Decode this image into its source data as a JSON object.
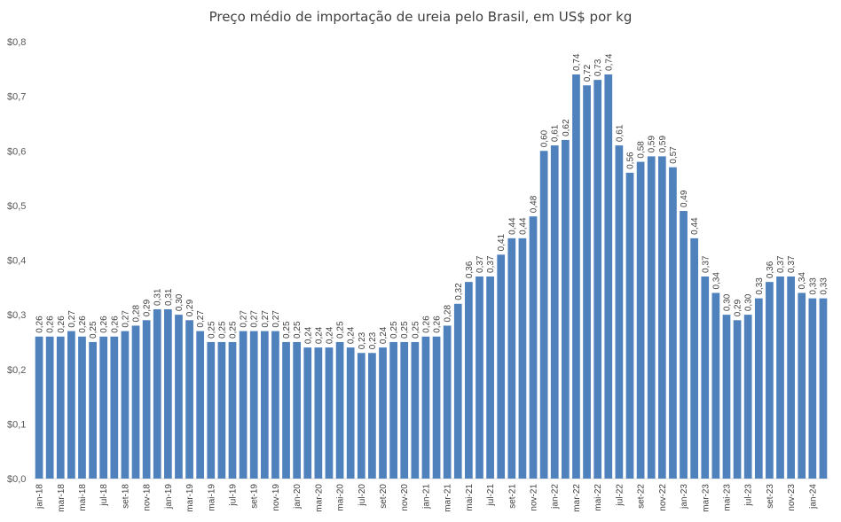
{
  "chart_data": {
    "type": "bar",
    "title": "Preço médio de importação de ureia pelo Brasil, em US$ por kg",
    "xlabel": "",
    "ylabel": "",
    "ylim": [
      0,
      0.8
    ],
    "yticks": [
      "$0,0",
      "$0,1",
      "$0,2",
      "$0,3",
      "$0,4",
      "$0,5",
      "$0,6",
      "$0,7",
      "$0,8"
    ],
    "grid": false,
    "legend": "none",
    "bar_color": "#4F81BD",
    "categories": [
      "jan-18",
      "fev-18",
      "mar-18",
      "abr-18",
      "mai-18",
      "jun-18",
      "jul-18",
      "ago-18",
      "set-18",
      "out-18",
      "nov-18",
      "dez-18",
      "jan-19",
      "fev-19",
      "mar-19",
      "abr-19",
      "mai-19",
      "jun-19",
      "jul-19",
      "ago-19",
      "set-19",
      "out-19",
      "nov-19",
      "dez-19",
      "jan-20",
      "fev-20",
      "mar-20",
      "abr-20",
      "mai-20",
      "jun-20",
      "jul-20",
      "ago-20",
      "set-20",
      "out-20",
      "nov-20",
      "dez-20",
      "jan-21",
      "fev-21",
      "mar-21",
      "abr-21",
      "mai-21",
      "jun-21",
      "jul-21",
      "ago-21",
      "set-21",
      "out-21",
      "nov-21",
      "dez-21",
      "jan-22",
      "fev-22",
      "mar-22",
      "abr-22",
      "mai-22",
      "jun-22",
      "jul-22",
      "ago-22",
      "set-22",
      "out-22",
      "nov-22",
      "dez-22",
      "jan-23",
      "fev-23",
      "mar-23",
      "abr-23",
      "mai-23",
      "jun-23",
      "jul-23",
      "ago-23",
      "set-23",
      "out-23",
      "nov-23",
      "dez-23",
      "jan-24",
      "fev-24"
    ],
    "visible_xticks": [
      "jan-18",
      "mar-18",
      "mai-18",
      "jul-18",
      "set-18",
      "nov-18",
      "jan-19",
      "mar-19",
      "mai-19",
      "jul-19",
      "set-19",
      "nov-19",
      "jan-20",
      "mar-20",
      "mai-20",
      "jul-20",
      "set-20",
      "nov-20",
      "jan-21",
      "mar-21",
      "mai-21",
      "jul-21",
      "set-21",
      "nov-21",
      "jan-22",
      "mar-22",
      "mai-22",
      "jul-22",
      "set-22",
      "nov-22",
      "jan-23",
      "mar-23",
      "mai-23",
      "jul-23",
      "set-23",
      "nov-23",
      "jan-24"
    ],
    "values": [
      0.26,
      0.26,
      0.26,
      0.27,
      0.26,
      0.25,
      0.26,
      0.26,
      0.27,
      0.28,
      0.29,
      0.31,
      0.31,
      0.3,
      0.29,
      0.27,
      0.25,
      0.25,
      0.25,
      0.27,
      0.27,
      0.27,
      0.27,
      0.25,
      0.25,
      0.24,
      0.24,
      0.24,
      0.25,
      0.24,
      0.23,
      0.23,
      0.24,
      0.25,
      0.25,
      0.25,
      0.26,
      0.26,
      0.28,
      0.32,
      0.36,
      0.37,
      0.37,
      0.41,
      0.44,
      0.44,
      0.48,
      0.6,
      0.61,
      0.62,
      0.74,
      0.72,
      0.73,
      0.74,
      0.61,
      0.56,
      0.58,
      0.59,
      0.59,
      0.57,
      0.49,
      0.44,
      0.37,
      0.34,
      0.3,
      0.29,
      0.3,
      0.33,
      0.36,
      0.37,
      0.37,
      0.34,
      0.33,
      0.33
    ],
    "labels": [
      "0,26",
      "0,26",
      "0,26",
      "0,27",
      "0,26",
      "0,25",
      "0,26",
      "0,26",
      "0,27",
      "0,28",
      "0,29",
      "0,31",
      "0,31",
      "0,30",
      "0,29",
      "0,27",
      "0,25",
      "0,25",
      "0,25",
      "0,27",
      "0,27",
      "0,27",
      "0,27",
      "0,25",
      "0,25",
      "0,24",
      "0,24",
      "0,24",
      "0,25",
      "0,24",
      "0,23",
      "0,23",
      "0,24",
      "0,25",
      "0,25",
      "0,25",
      "0,26",
      "0,26",
      "0,28",
      "0,32",
      "0,36",
      "0,37",
      "0,37",
      "0,41",
      "0,44",
      "0,44",
      "0,48",
      "0,60",
      "0,61",
      "0,62",
      "0,74",
      "0,72",
      "0,73",
      "0,74",
      "0,61",
      "0,56",
      "0,58",
      "0,59",
      "0,59",
      "0,57",
      "0,49",
      "0,44",
      "0,37",
      "0,34",
      "0,30",
      "0,29",
      "0,30",
      "0,33",
      "0,36",
      "0,37",
      "0,37",
      "0,34",
      "0,33",
      "0,33"
    ]
  }
}
